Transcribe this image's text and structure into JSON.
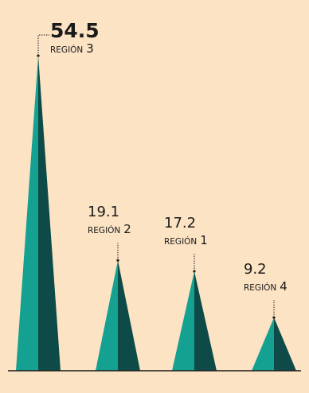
{
  "chart_data": {
    "type": "bar",
    "style": "triangular spikes",
    "categories": [
      "REGIÓN 3",
      "REGIÓN 2",
      "REGIÓN 1",
      "REGIÓN 4"
    ],
    "category_words": [
      "REGIÓN",
      "REGIÓN",
      "REGIÓN",
      "REGIÓN"
    ],
    "category_numbers": [
      "3",
      "2",
      "1",
      "4"
    ],
    "values": [
      54.5,
      19.1,
      17.2,
      9.2
    ],
    "value_labels": [
      "54.5",
      "19.1",
      "17.2",
      "9.2"
    ],
    "ylim": [
      0,
      54.5
    ],
    "grid": false,
    "legend": "none",
    "colors": {
      "background": "#fbe3c4",
      "spike_light": "#14a191",
      "spike_dark": "#0d4a48",
      "baseline": "#1a1a1a",
      "text": "#1a1a1a"
    }
  }
}
